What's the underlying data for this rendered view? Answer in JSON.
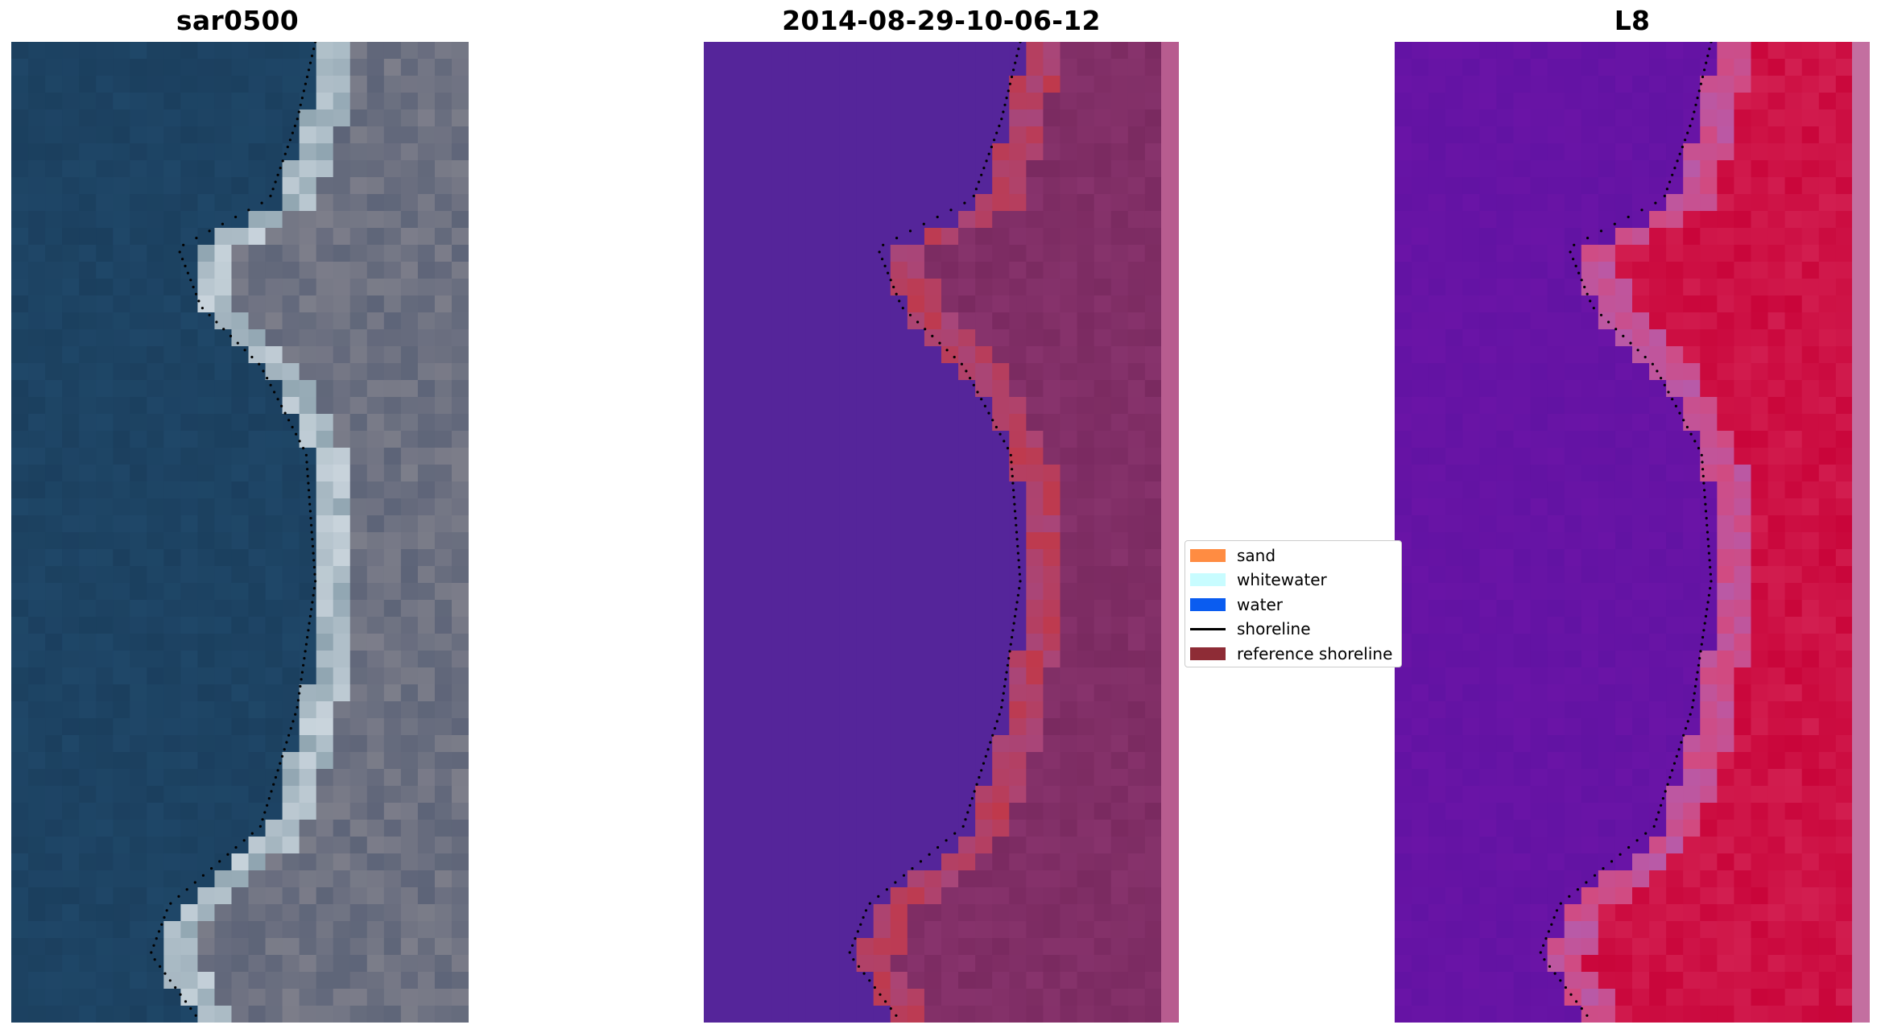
{
  "panels": [
    {
      "title": "sar0500",
      "kind": "rgb"
    },
    {
      "title": "2014-08-29-10-06-12",
      "kind": "classified"
    },
    {
      "title": "L8",
      "kind": "index"
    }
  ],
  "legend": [
    {
      "label": "sand",
      "color": "#ff8c42",
      "type": "patch"
    },
    {
      "label": "whitewater",
      "color": "#c8fcff",
      "type": "patch"
    },
    {
      "label": "water",
      "color": "#0a5cf0",
      "type": "patch"
    },
    {
      "label": "shoreline",
      "color": "#000000",
      "type": "line"
    },
    {
      "label": "reference shoreline",
      "color": "#8e2c36",
      "type": "patch"
    }
  ],
  "colors": {
    "water_rgb": "#1b3f5e",
    "land_rgb": "#7d7e8a",
    "classified_water": "#55259a",
    "classified_land": "#87336c",
    "reference_band": "#c0394b",
    "index_water": "#6a14a6",
    "index_land": "#c9053a"
  }
}
